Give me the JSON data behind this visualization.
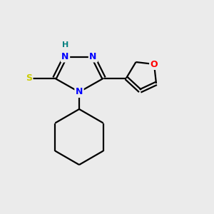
{
  "background_color": "#ebebeb",
  "bond_color": "#000000",
  "atom_colors": {
    "N": "#0000ff",
    "O": "#ff0000",
    "S": "#cccc00",
    "H": "#008080",
    "C": "#000000"
  },
  "figsize": [
    3.0,
    3.0
  ],
  "dpi": 100
}
